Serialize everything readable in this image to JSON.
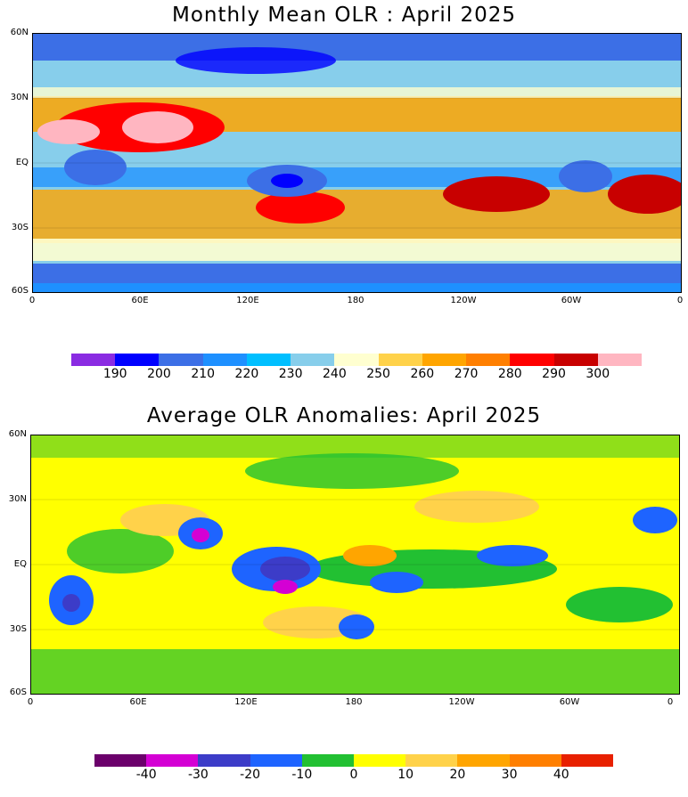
{
  "panel1": {
    "title": "Monthly Mean OLR : April 2025",
    "lat_ticks": [
      "60N",
      "30N",
      "EQ",
      "30S",
      "60S"
    ],
    "lon_ticks": [
      "0",
      "60E",
      "120E",
      "180",
      "120W",
      "60W",
      "0"
    ],
    "colorbar": {
      "colors": [
        "#8a2be2",
        "#0000ff",
        "#3c6fe6",
        "#1e90ff",
        "#00bfff",
        "#87ceeb",
        "#ffffd0",
        "#ffd24a",
        "#ffa500",
        "#ff7f00",
        "#ff0000",
        "#c80000",
        "#ffb6c1"
      ],
      "labels": [
        "190",
        "200",
        "210",
        "220",
        "230",
        "240",
        "250",
        "260",
        "270",
        "280",
        "290",
        "300"
      ]
    }
  },
  "panel2": {
    "title": "Average OLR Anomalies: April 2025",
    "lat_ticks": [
      "60N",
      "30N",
      "EQ",
      "30S",
      "60S"
    ],
    "lon_ticks": [
      "0",
      "60E",
      "120E",
      "180",
      "120W",
      "60W",
      "0"
    ],
    "colorbar": {
      "colors": [
        "#6b006b",
        "#d400d4",
        "#3c3cc8",
        "#1e64ff",
        "#22c032",
        "#ffff00",
        "#ffd24a",
        "#ffa500",
        "#ff7f00",
        "#e82000"
      ],
      "labels": [
        "-40",
        "-30",
        "-20",
        "-10",
        "0",
        "10",
        "20",
        "30",
        "40"
      ]
    }
  }
}
